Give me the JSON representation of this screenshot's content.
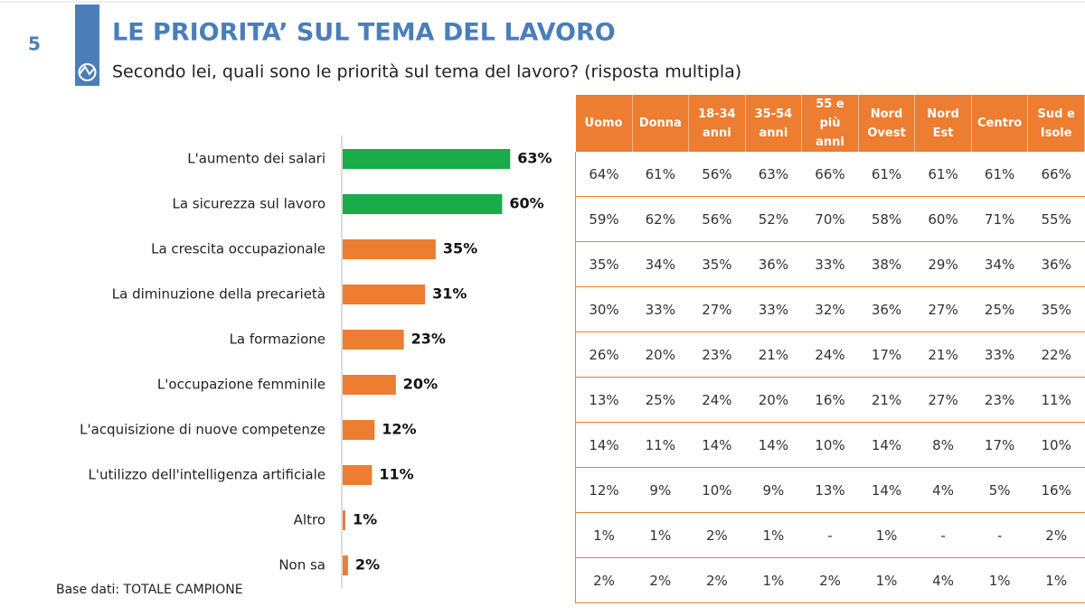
{
  "page_number": "5",
  "title": "LE PRIORITA’ SUL TEMA DEL LAVORO",
  "subtitle": "Secondo lei, quali sono le priorità sul tema del lavoro? (risposta multipla)",
  "note": "Base dati: TOTALE CAMPIONE",
  "chart_data": {
    "type": "bar",
    "orientation": "horizontal",
    "categories": [
      "L'aumento dei salari",
      "La sicurezza sul lavoro",
      "La crescita occupazionale",
      "La diminuzione della precarietà",
      "La formazione",
      "L'occupazione femminile",
      "L'acquisizione di nuove competenze",
      "L'utilizzo dell'intelligenza artificiale",
      "Altro",
      "Non sa"
    ],
    "values": [
      63,
      60,
      35,
      31,
      23,
      20,
      12,
      11,
      1,
      2
    ],
    "value_labels": [
      "63%",
      "60%",
      "35%",
      "31%",
      "23%",
      "20%",
      "12%",
      "11%",
      "1%",
      "2%"
    ],
    "colors": [
      "#1aab4b",
      "#1aab4b",
      "#ed7d31",
      "#ed7d31",
      "#ed7d31",
      "#ed7d31",
      "#ed7d31",
      "#ed7d31",
      "#ed7d31",
      "#ed7d31"
    ]
  },
  "table": {
    "header": [
      "Uomo",
      "Donna",
      "18-34 anni",
      "35-54 anni",
      "55 e più anni",
      "Nord Ovest",
      "Nord Est",
      "Centro",
      "Sud e Isole"
    ],
    "rows": [
      [
        "64%",
        "61%",
        "56%",
        "63%",
        "66%",
        "61%",
        "61%",
        "61%",
        "66%"
      ],
      [
        "59%",
        "62%",
        "56%",
        "52%",
        "70%",
        "58%",
        "60%",
        "71%",
        "55%"
      ],
      [
        "35%",
        "34%",
        "35%",
        "36%",
        "33%",
        "38%",
        "29%",
        "34%",
        "36%"
      ],
      [
        "30%",
        "33%",
        "27%",
        "33%",
        "32%",
        "36%",
        "27%",
        "25%",
        "35%"
      ],
      [
        "26%",
        "20%",
        "23%",
        "21%",
        "24%",
        "17%",
        "21%",
        "33%",
        "22%"
      ],
      [
        "13%",
        "25%",
        "24%",
        "20%",
        "16%",
        "21%",
        "27%",
        "23%",
        "11%"
      ],
      [
        "14%",
        "11%",
        "14%",
        "14%",
        "10%",
        "14%",
        "8%",
        "17%",
        "10%"
      ],
      [
        "12%",
        "9%",
        "10%",
        "9%",
        "13%",
        "14%",
        "4%",
        "5%",
        "16%"
      ],
      [
        "1%",
        "1%",
        "2%",
        "1%",
        "-",
        "1%",
        "-",
        "-",
        "2%"
      ],
      [
        "2%",
        "2%",
        "2%",
        "1%",
        "2%",
        "1%",
        "4%",
        "1%",
        "1%"
      ]
    ]
  }
}
